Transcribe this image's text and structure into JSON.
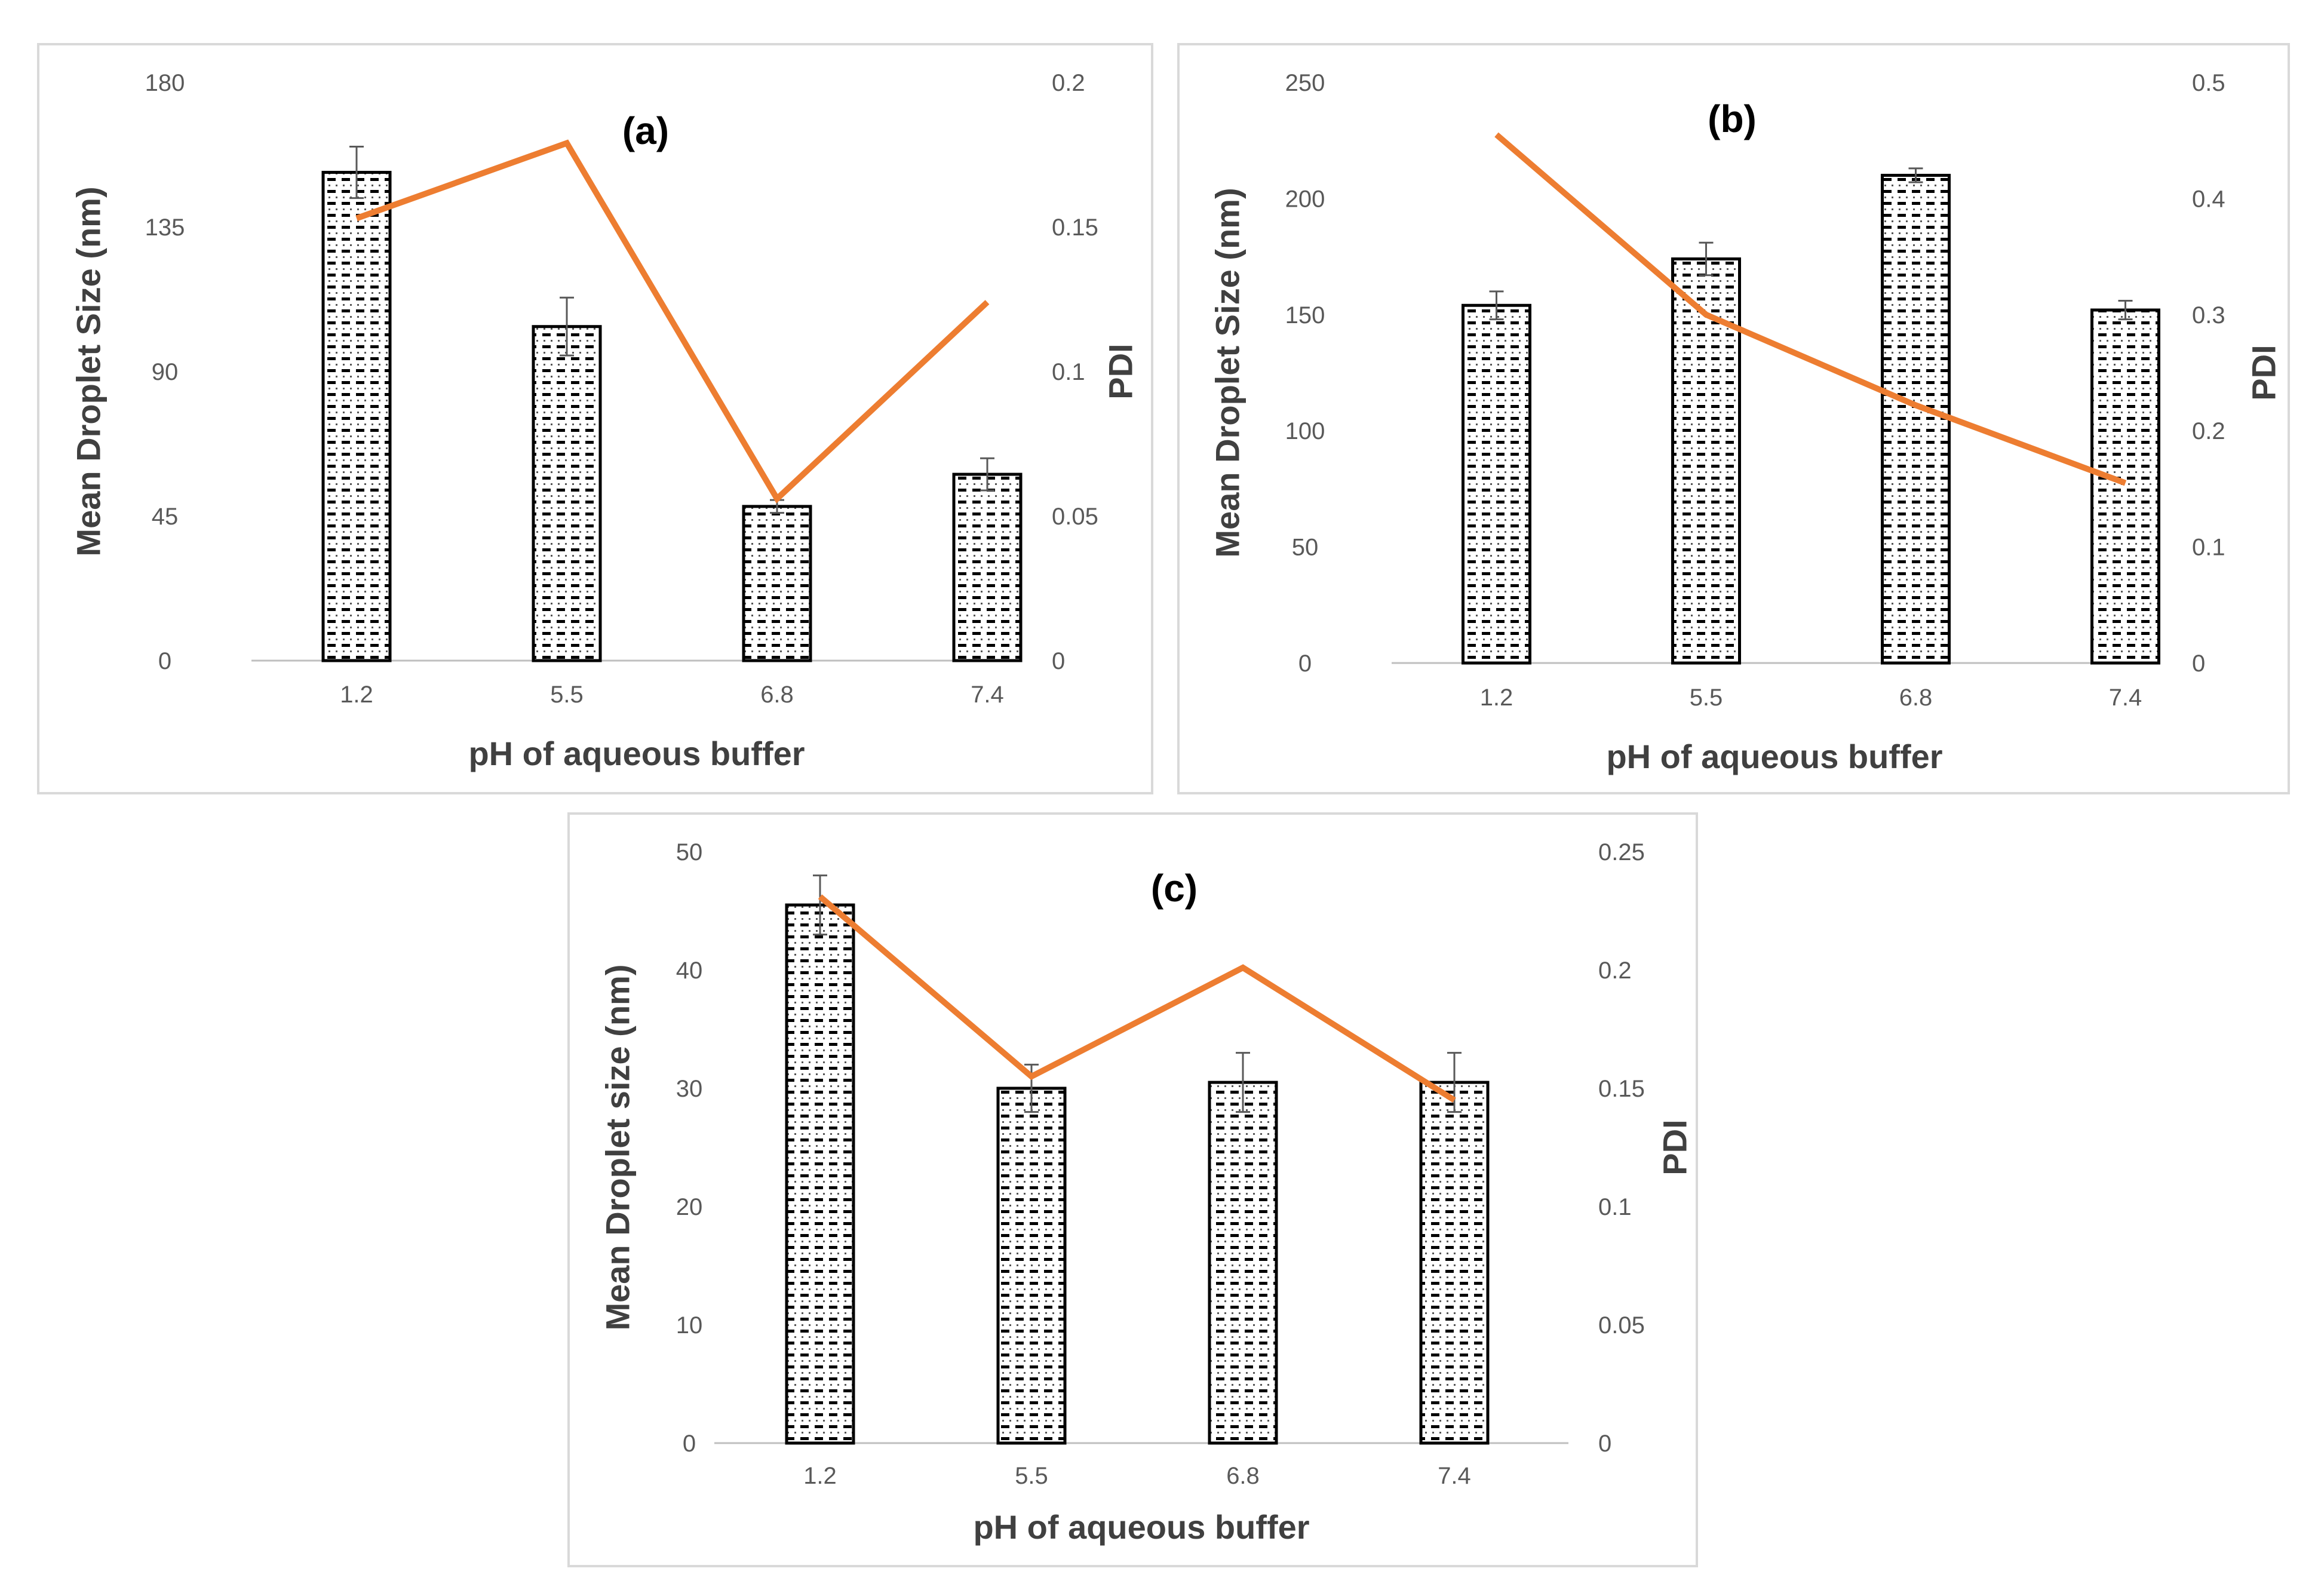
{
  "chart_data": [
    {
      "type": "bar",
      "title": "(a)",
      "categories": [
        "1.2",
        "5.5",
        "6.8",
        "7.4"
      ],
      "xlabel": "pH of aqueous buffer",
      "ylabel": "Mean Droplet Size (nm)",
      "y2label": "PDI",
      "ylim": [
        0,
        180
      ],
      "y2lim": [
        0,
        0.2
      ],
      "yticks": [
        "0",
        "45",
        "90",
        "135",
        "180"
      ],
      "y2ticks": [
        "0",
        "0.05",
        "0.1",
        "0.15",
        "0.2"
      ],
      "series": [
        {
          "type": "bar",
          "axis": "left",
          "values": [
            152,
            104,
            48,
            58
          ],
          "errors": [
            8,
            9,
            2,
            5
          ],
          "pattern": "dashed-dots",
          "color": "#000000"
        },
        {
          "type": "line",
          "axis": "right",
          "values": [
            0.153,
            0.179,
            0.056,
            0.124
          ],
          "color": "#ed7d31"
        }
      ],
      "grid": false,
      "legend": "none"
    },
    {
      "type": "bar",
      "title": "(b)",
      "categories": [
        "1.2",
        "5.5",
        "6.8",
        "7.4"
      ],
      "xlabel": "pH of aqueous buffer",
      "ylabel": "Mean Droplet Size (nm)",
      "y2label": "PDI",
      "ylim": [
        0,
        250
      ],
      "y2lim": [
        0,
        0.5
      ],
      "yticks": [
        "0",
        "50",
        "100",
        "150",
        "200",
        "250"
      ],
      "y2ticks": [
        "0",
        "0.1",
        "0.2",
        "0.3",
        "0.4",
        "0.5"
      ],
      "series": [
        {
          "type": "bar",
          "axis": "left",
          "values": [
            154,
            174,
            210,
            152
          ],
          "errors": [
            6,
            7,
            3,
            4
          ],
          "pattern": "dashed-dots",
          "color": "#000000"
        },
        {
          "type": "line",
          "axis": "right",
          "values": [
            0.455,
            0.3,
            0.222,
            0.155
          ],
          "color": "#ed7d31"
        }
      ],
      "grid": false,
      "legend": "none"
    },
    {
      "type": "bar",
      "title": "(c)",
      "categories": [
        "1.2",
        "5.5",
        "6.8",
        "7.4"
      ],
      "xlabel": "pH of aqueous buffer",
      "ylabel": "Mean Droplet size (nm)",
      "y2label": "PDI",
      "ylim": [
        0,
        50
      ],
      "y2lim": [
        0,
        0.25
      ],
      "yticks": [
        "0",
        "10",
        "20",
        "30",
        "40",
        "50"
      ],
      "y2ticks": [
        "0",
        "0.05",
        "0.1",
        "0.15",
        "0.2",
        "0.25"
      ],
      "series": [
        {
          "type": "bar",
          "axis": "left",
          "values": [
            45.5,
            30,
            30.5,
            30.5
          ],
          "errors": [
            2.5,
            2,
            2.5,
            2.5
          ],
          "pattern": "dashed-dots",
          "color": "#000000"
        },
        {
          "type": "line",
          "axis": "right",
          "values": [
            0.231,
            0.155,
            0.201,
            0.145
          ],
          "color": "#ed7d31"
        }
      ],
      "grid": false,
      "legend": "none"
    }
  ]
}
